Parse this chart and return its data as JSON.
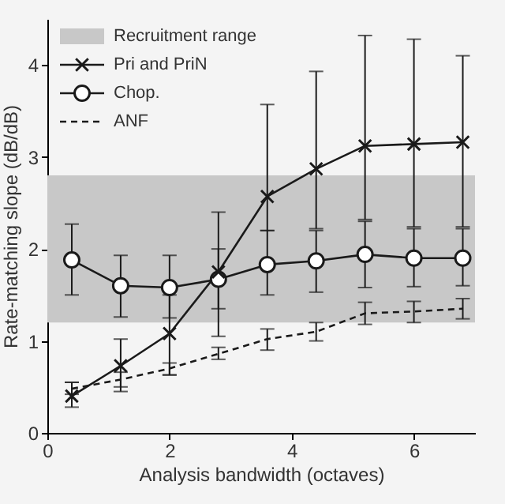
{
  "chart_data": {
    "type": "line",
    "xlabel": "Analysis bandwidth (octaves)",
    "ylabel": "Rate-matching slope (dB/dB)",
    "xlim": [
      0,
      7
    ],
    "ylim": [
      0,
      4.5
    ],
    "xticks": [
      0,
      2,
      4,
      6
    ],
    "yticks": [
      0,
      1,
      2,
      3,
      4
    ],
    "grid": false,
    "legend": "top left",
    "x": [
      0.4,
      1.2,
      2,
      2.8,
      3.6,
      4.4,
      5.2,
      6,
      6.8
    ],
    "bands": [
      {
        "axis": "y",
        "from": 1.2,
        "to": 2.8,
        "label": "Recruitment range",
        "color": "#c8c8c8"
      }
    ],
    "series": [
      {
        "name": "Pri and PriN",
        "color": "#1a1a1a",
        "marker": "cross",
        "line_style": "solid",
        "values": [
          0.4,
          0.73,
          1.08,
          1.75,
          2.57,
          2.87,
          3.12,
          3.14,
          3.16
        ],
        "errors": [
          [
            0.28,
            0.55
          ],
          [
            0.45,
            1.02
          ],
          [
            0.63,
            1.5
          ],
          [
            1.05,
            2.4
          ],
          [
            2.2,
            3.57
          ],
          [
            2.22,
            3.93
          ],
          [
            2.32,
            4.32
          ],
          [
            2.24,
            4.28
          ],
          [
            2.24,
            4.1
          ]
        ]
      },
      {
        "name": "Chop.",
        "color": "#1a1a1a",
        "marker": "circle",
        "line_style": "solid",
        "values": [
          1.88,
          1.6,
          1.58,
          1.67,
          1.83,
          1.87,
          1.94,
          1.9,
          1.9
        ],
        "errors": [
          [
            1.5,
            2.27
          ],
          [
            1.26,
            1.93
          ],
          [
            1.25,
            1.93
          ],
          [
            1.35,
            2.0
          ],
          [
            1.5,
            2.2
          ],
          [
            1.53,
            2.2
          ],
          [
            1.58,
            2.3
          ],
          [
            1.59,
            2.22
          ],
          [
            1.6,
            2.22
          ]
        ]
      },
      {
        "name": "ANF",
        "color": "#1a1a1a",
        "marker": "none",
        "line_style": "dashed",
        "values": [
          0.48,
          0.58,
          0.7,
          0.86,
          1.02,
          1.1,
          1.3,
          1.32,
          1.35
        ],
        "errors": [
          [
            0.42,
            0.55
          ],
          [
            0.5,
            0.66
          ],
          [
            0.63,
            0.76
          ],
          [
            0.8,
            0.93
          ],
          [
            0.9,
            1.13
          ],
          [
            1.0,
            1.2
          ],
          [
            1.18,
            1.42
          ],
          [
            1.2,
            1.43
          ],
          [
            1.24,
            1.46
          ]
        ]
      }
    ]
  }
}
